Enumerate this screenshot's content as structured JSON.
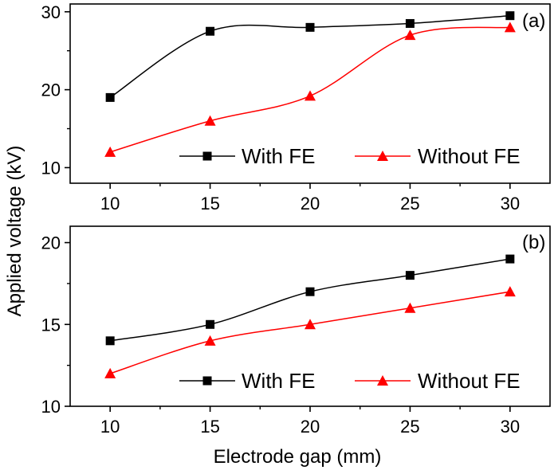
{
  "chart_data": [
    {
      "type": "line",
      "panel_label": "(a)",
      "x": [
        10,
        15,
        20,
        25,
        30
      ],
      "xlim": [
        8,
        32
      ],
      "ylim": [
        8,
        31
      ],
      "xticks": [
        "10",
        "15",
        "20",
        "25",
        "30"
      ],
      "yticks": [
        10,
        20,
        30
      ],
      "ytick_labels": [
        "10",
        "20",
        "30"
      ],
      "series": [
        {
          "name": "With FE",
          "marker": "square",
          "color": "#000000",
          "values": [
            19,
            27.5,
            28,
            28.5,
            29.5
          ]
        },
        {
          "name": "Without FE",
          "marker": "triangle",
          "color": "#ff0000",
          "values": [
            12,
            16,
            19.2,
            27,
            28
          ]
        }
      ],
      "legend": "bottom"
    },
    {
      "type": "line",
      "panel_label": "(b)",
      "x": [
        10,
        15,
        20,
        25,
        30
      ],
      "xlim": [
        8,
        32
      ],
      "ylim": [
        10,
        21
      ],
      "xticks": [
        "10",
        "15",
        "20",
        "25",
        "30"
      ],
      "yticks": [
        10,
        15,
        20
      ],
      "ytick_labels": [
        "10",
        "15",
        "20"
      ],
      "series": [
        {
          "name": "With FE",
          "marker": "square",
          "color": "#000000",
          "values": [
            14,
            15,
            17,
            18,
            19
          ]
        },
        {
          "name": "Without FE",
          "marker": "triangle",
          "color": "#ff0000",
          "values": [
            12,
            14,
            15,
            16,
            17
          ]
        }
      ],
      "legend": "bottom"
    }
  ],
  "xlabel": "Electrode gap (mm)",
  "ylabel": "Applied voltage (kV)"
}
